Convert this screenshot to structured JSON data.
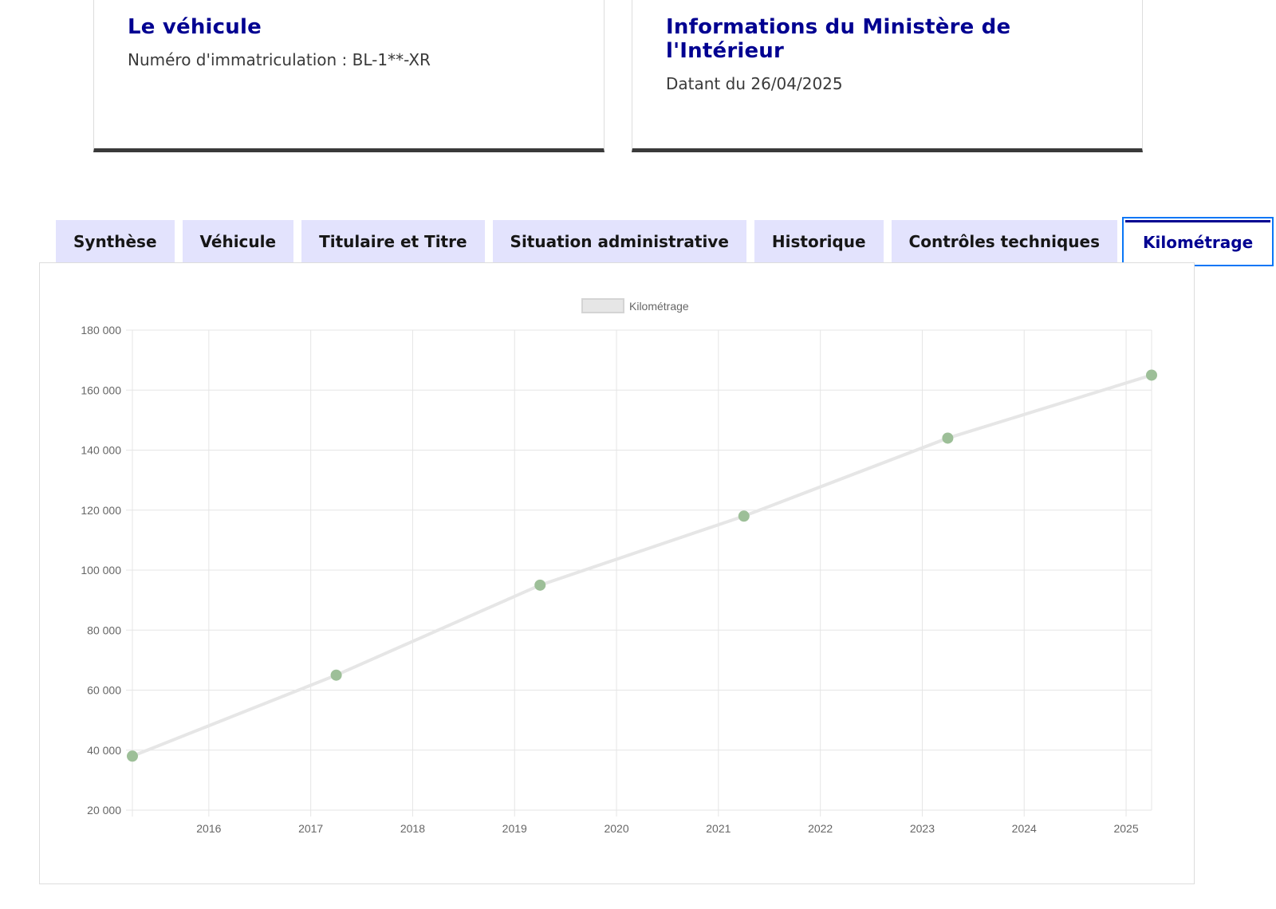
{
  "cards": {
    "vehicle": {
      "title": "Le véhicule",
      "text": "Numéro d'immatriculation : BL-1**-XR"
    },
    "ministry": {
      "title": "Informations du Ministère de l'Intérieur",
      "text": "Datant du 26/04/2025"
    }
  },
  "tabs": [
    {
      "label": "Synthèse",
      "active": false
    },
    {
      "label": "Véhicule",
      "active": false
    },
    {
      "label": "Titulaire et Titre",
      "active": false
    },
    {
      "label": "Situation administrative",
      "active": false
    },
    {
      "label": "Historique",
      "active": false
    },
    {
      "label": "Contrôles techniques",
      "active": false
    },
    {
      "label": "Kilométrage",
      "active": true
    }
  ],
  "chart_data": {
    "type": "line",
    "series": [
      {
        "name": "Kilométrage",
        "color": "#e6e6e6",
        "point_color": "#9dbf98",
        "points": [
          {
            "x": "2015-04",
            "y": 38000
          },
          {
            "x": "2017-04",
            "y": 65000
          },
          {
            "x": "2019-04",
            "y": 95000
          },
          {
            "x": "2021-04",
            "y": 118000
          },
          {
            "x": "2023-04",
            "y": 144000
          },
          {
            "x": "2025-04",
            "y": 165000
          }
        ]
      }
    ],
    "xticks": [
      "2016",
      "2017",
      "2018",
      "2019",
      "2020",
      "2021",
      "2022",
      "2023",
      "2024",
      "2025"
    ],
    "yticks": [
      "20 000",
      "40 000",
      "60 000",
      "80 000",
      "100 000",
      "120 000",
      "140 000",
      "160 000",
      "180 000"
    ],
    "xlim": [
      "2015-04",
      "2025-04"
    ],
    "ylim": [
      20000,
      180000
    ],
    "grid": true,
    "legend": "top-center"
  }
}
